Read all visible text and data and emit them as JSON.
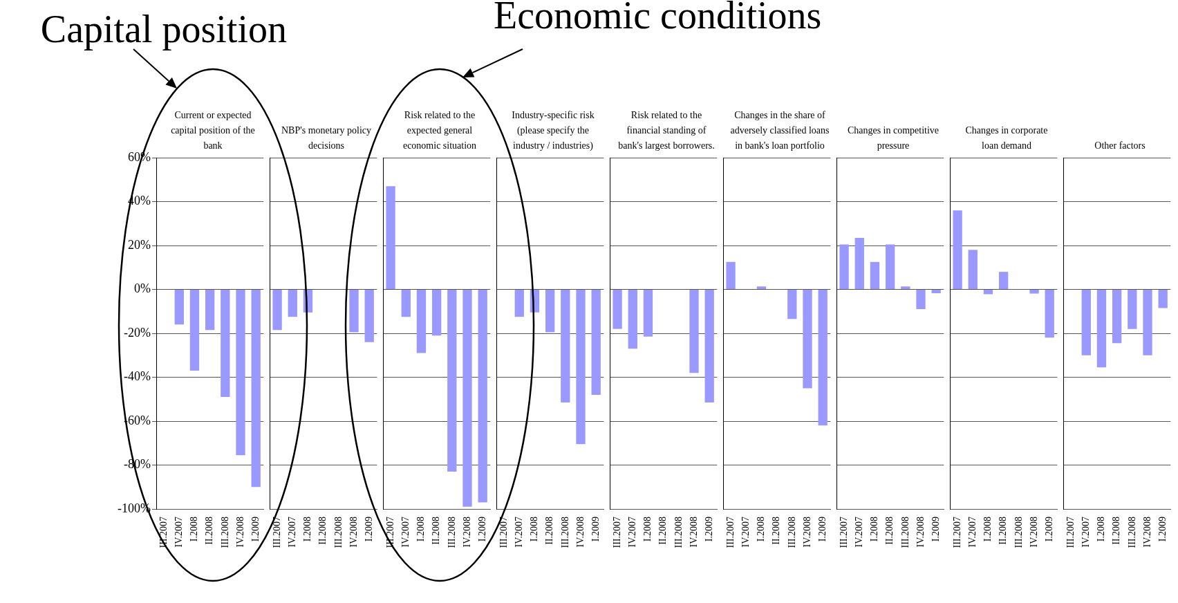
{
  "chart_data": [
    {
      "type": "bar",
      "title": "Current or expected capital position of the bank",
      "annotations": [
        "Capital position"
      ],
      "categories": [
        "III.2007",
        "IV.2007",
        "I.2008",
        "II.2008",
        "III.2008",
        "IV.2008",
        "I.2009"
      ],
      "values": [
        null,
        -16,
        -37,
        -18.5,
        -49,
        -75.5,
        -90
      ],
      "color": "#9999ff",
      "ylim": [
        -100,
        60
      ],
      "yticks": [
        {
          "value": -100,
          "label": "-100%"
        },
        {
          "value": -80,
          "label": "-80%"
        },
        {
          "value": -60,
          "label": "-60%"
        },
        {
          "value": -40,
          "label": "-40%"
        },
        {
          "value": -20,
          "label": "-20%"
        },
        {
          "value": 0,
          "label": "0%"
        },
        {
          "value": 20,
          "label": "20%"
        },
        {
          "value": 40,
          "label": "40%"
        },
        {
          "value": 60,
          "label": "60%"
        }
      ],
      "grid": "y"
    },
    {
      "type": "bar",
      "title": "NBP's monetary policy decisions",
      "categories": [
        "III.2007",
        "IV.2007",
        "I.2008",
        "II.2008",
        "III.2008",
        "IV.2008",
        "I.2009"
      ],
      "values": [
        -18.5,
        -12.5,
        -10.5,
        null,
        null,
        -19.5,
        -24
      ],
      "color": "#9999ff",
      "ylim": [
        -100,
        60
      ],
      "yticks": [
        {
          "value": -100,
          "label": null
        },
        {
          "value": -80,
          "label": null
        },
        {
          "value": -60,
          "label": null
        },
        {
          "value": -40,
          "label": null
        },
        {
          "value": -20,
          "label": null
        },
        {
          "value": 0,
          "label": null
        },
        {
          "value": 20,
          "label": null
        },
        {
          "value": 40,
          "label": null
        },
        {
          "value": 60,
          "label": null
        }
      ],
      "grid": "y",
      "tick_labels": "x"
    },
    {
      "type": "bar",
      "title": "Risk related to the expected general economic situation",
      "annotations": [
        "Economic conditions"
      ],
      "categories": [
        "III.2007",
        "IV.2007",
        "I.2008",
        "II.2008",
        "III.2008",
        "IV.2008",
        "I.2009"
      ],
      "values": [
        47,
        -12.5,
        -29,
        -21,
        -83,
        -99,
        -97
      ],
      "color": "#9999ff",
      "ylim": [
        -100,
        60
      ],
      "yticks": [
        {
          "value": -100,
          "label": null
        },
        {
          "value": -80,
          "label": null
        },
        {
          "value": -60,
          "label": null
        },
        {
          "value": -40,
          "label": null
        },
        {
          "value": -20,
          "label": null
        },
        {
          "value": 0,
          "label": null
        },
        {
          "value": 20,
          "label": null
        },
        {
          "value": 40,
          "label": null
        },
        {
          "value": 60,
          "label": null
        }
      ],
      "grid": "y",
      "tick_labels": "x"
    },
    {
      "type": "bar",
      "title": "Industry-specific risk (please specify the industry / industries)",
      "categories": [
        "III.2007",
        "IV.2007",
        "I.2008",
        "II.2008",
        "III.2008",
        "IV.2008",
        "I.2009"
      ],
      "values": [
        null,
        -12.5,
        -10.5,
        -19.5,
        -51.5,
        -70.5,
        -48
      ],
      "color": "#9999ff",
      "ylim": [
        -100,
        60
      ],
      "yticks": [
        {
          "value": -100,
          "label": null
        },
        {
          "value": -80,
          "label": null
        },
        {
          "value": -60,
          "label": null
        },
        {
          "value": -40,
          "label": null
        },
        {
          "value": -20,
          "label": null
        },
        {
          "value": 0,
          "label": null
        },
        {
          "value": 20,
          "label": null
        },
        {
          "value": 40,
          "label": null
        },
        {
          "value": 60,
          "label": null
        }
      ],
      "grid": "y",
      "tick_labels": "x"
    },
    {
      "type": "bar",
      "title": "Risk related to the financial standing of bank's largest borrowers.",
      "categories": [
        "III.2007",
        "IV.2007",
        "I.2008",
        "II.2008",
        "III.2008",
        "IV.2008",
        "I.2009"
      ],
      "values": [
        -18,
        -27,
        -21.5,
        null,
        null,
        -38,
        -51.5
      ],
      "color": "#9999ff",
      "ylim": [
        -100,
        60
      ],
      "yticks": [
        {
          "value": -100,
          "label": null
        },
        {
          "value": -80,
          "label": null
        },
        {
          "value": -60,
          "label": null
        },
        {
          "value": -40,
          "label": null
        },
        {
          "value": -20,
          "label": null
        },
        {
          "value": 0,
          "label": null
        },
        {
          "value": 20,
          "label": null
        },
        {
          "value": 40,
          "label": null
        },
        {
          "value": 60,
          "label": null
        }
      ],
      "grid": "y",
      "tick_labels": "x"
    },
    {
      "type": "bar",
      "title": "Changes in the share of adversely classified loans in bank's loan portfolio",
      "categories": [
        "III.2007",
        "IV.2007",
        "I.2008",
        "II.2008",
        "III.2008",
        "IV.2008",
        "I.2009"
      ],
      "values": [
        12.5,
        null,
        1.3,
        null,
        -13.5,
        -45,
        -62
      ],
      "color": "#9999ff",
      "ylim": [
        -100,
        60
      ],
      "yticks": [
        {
          "value": -100,
          "label": null
        },
        {
          "value": -80,
          "label": null
        },
        {
          "value": -60,
          "label": null
        },
        {
          "value": -40,
          "label": null
        },
        {
          "value": -20,
          "label": null
        },
        {
          "value": 0,
          "label": null
        },
        {
          "value": 20,
          "label": null
        },
        {
          "value": 40,
          "label": null
        },
        {
          "value": 60,
          "label": null
        }
      ],
      "grid": "y",
      "tick_labels": "x"
    },
    {
      "type": "bar",
      "title": "Changes in competitive pressure",
      "categories": [
        "III.2007",
        "IV.2007",
        "I.2008",
        "II.2008",
        "III.2008",
        "IV.2008",
        "I.2009"
      ],
      "values": [
        20.5,
        23.5,
        12.5,
        20.5,
        1.3,
        -9,
        -1.7
      ],
      "color": "#9999ff",
      "ylim": [
        -100,
        60
      ],
      "yticks": [
        {
          "value": -100,
          "label": null
        },
        {
          "value": -80,
          "label": null
        },
        {
          "value": -60,
          "label": null
        },
        {
          "value": -40,
          "label": null
        },
        {
          "value": -20,
          "label": null
        },
        {
          "value": 0,
          "label": null
        },
        {
          "value": 20,
          "label": null
        },
        {
          "value": 40,
          "label": null
        },
        {
          "value": 60,
          "label": null
        }
      ],
      "grid": "y",
      "tick_labels": "x"
    },
    {
      "type": "bar",
      "title": "Changes in corporate loan demand",
      "categories": [
        "III.2007",
        "IV.2007",
        "I.2008",
        "II.2008",
        "III.2008",
        "IV.2008",
        "I.2009"
      ],
      "values": [
        36,
        18,
        -2.2,
        8,
        null,
        -1.9,
        -22
      ],
      "color": "#9999ff",
      "ylim": [
        -100,
        60
      ],
      "yticks": [
        {
          "value": -100,
          "label": null
        },
        {
          "value": -80,
          "label": null
        },
        {
          "value": -60,
          "label": null
        },
        {
          "value": -40,
          "label": null
        },
        {
          "value": -20,
          "label": null
        },
        {
          "value": 0,
          "label": null
        },
        {
          "value": 20,
          "label": null
        },
        {
          "value": 40,
          "label": null
        },
        {
          "value": 60,
          "label": null
        }
      ],
      "grid": "y",
      "tick_labels": "x"
    },
    {
      "type": "bar",
      "title": "Other factors",
      "categories": [
        "III.2007",
        "IV.2007",
        "I.2008",
        "II.2008",
        "III.2008",
        "IV.2008",
        "I.2009"
      ],
      "values": [
        null,
        -30,
        -35.5,
        -24.5,
        -18,
        -30,
        -8.5
      ],
      "color": "#9999ff",
      "ylim": [
        -100,
        60
      ],
      "yticks": [
        {
          "value": -100,
          "label": null
        },
        {
          "value": -80,
          "label": null
        },
        {
          "value": -60,
          "label": null
        },
        {
          "value": -40,
          "label": null
        },
        {
          "value": -20,
          "label": null
        },
        {
          "value": 0,
          "label": null
        },
        {
          "value": 20,
          "label": null
        },
        {
          "value": 40,
          "label": null
        },
        {
          "value": 60,
          "label": null
        }
      ],
      "grid": "y",
      "tick_labels": "x"
    }
  ]
}
